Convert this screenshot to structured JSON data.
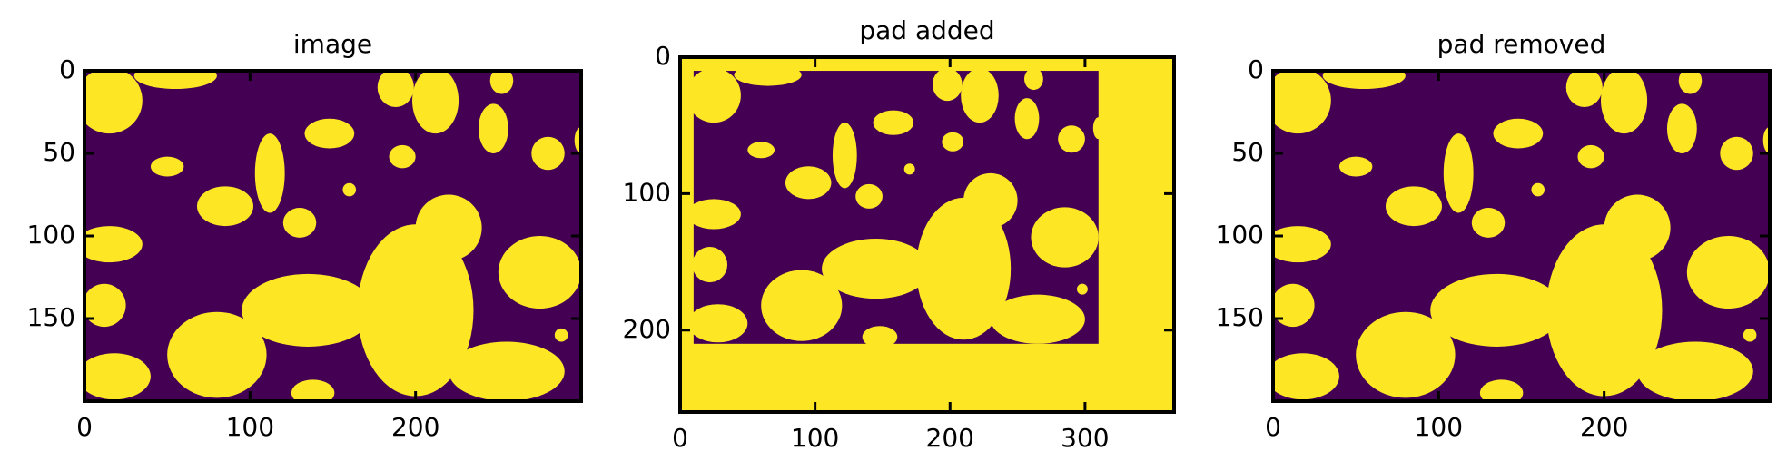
{
  "chart_data": [
    {
      "type": "image",
      "title": "image",
      "xlim": [
        0,
        300
      ],
      "ylim": [
        200,
        0
      ],
      "xticks": [
        0,
        100,
        200
      ],
      "yticks": [
        0,
        50,
        100,
        150
      ]
    },
    {
      "type": "image",
      "title": "pad added",
      "xlim": [
        0,
        366
      ],
      "ylim": [
        260,
        0
      ],
      "xticks": [
        0,
        100,
        200,
        300
      ],
      "yticks": [
        0,
        100,
        200
      ]
    },
    {
      "type": "image",
      "title": "pad removed",
      "xlim": [
        0,
        300
      ],
      "ylim": [
        200,
        0
      ],
      "xticks": [
        0,
        100,
        200
      ],
      "yticks": [
        0,
        50,
        100,
        150
      ]
    }
  ]
}
